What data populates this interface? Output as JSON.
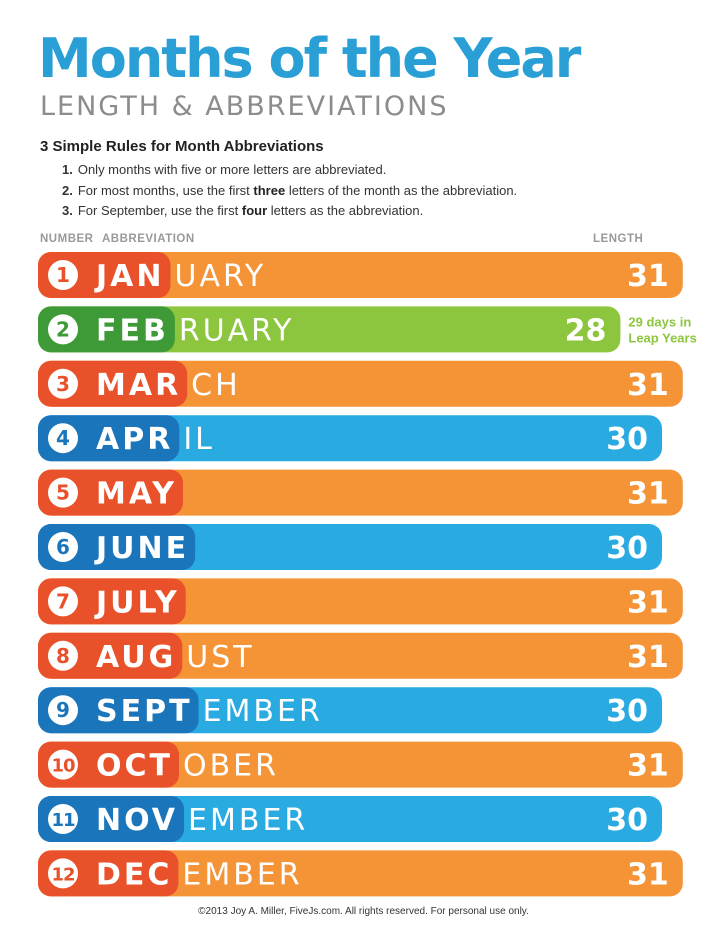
{
  "header": {
    "title": "Months of the Year",
    "subtitle": "LENGTH & ABBREVIATIONS"
  },
  "rules": {
    "heading": "3 Simple Rules for Month Abbreviations",
    "items": [
      {
        "num": "1.",
        "text_before": "Only months with five or more letters are abbreviated.",
        "bold": "",
        "text_after": ""
      },
      {
        "num": "2.",
        "text_before": "For most months, use the first ",
        "bold": "three",
        "text_after": " letters of the month as the abbreviation."
      },
      {
        "num": "3.",
        "text_before": "For September, use the first ",
        "bold": "four",
        "text_after": " letters as the abbreviation."
      }
    ]
  },
  "columns": {
    "number": "NUMBER",
    "abbreviation": "ABBREVIATION",
    "length": "LENGTH"
  },
  "colors": {
    "days31_light": "#f49437",
    "days31_dark": "#e8512a",
    "days30_light": "#29aae1",
    "days30_dark": "#1a75bb",
    "days28_light": "#8cc63f",
    "days28_dark": "#3e9a36"
  },
  "chart_data": {
    "type": "bar",
    "categories": [
      "1",
      "2",
      "3",
      "4",
      "5",
      "6",
      "7",
      "8",
      "9",
      "10",
      "11",
      "12"
    ],
    "months": [
      {
        "num": "1",
        "abbr": "JAN",
        "rest": "UARY",
        "days": 31
      },
      {
        "num": "2",
        "abbr": "FEB",
        "rest": "RUARY",
        "days": 28
      },
      {
        "num": "3",
        "abbr": "MAR",
        "rest": "CH",
        "days": 31
      },
      {
        "num": "4",
        "abbr": "APR",
        "rest": "IL",
        "days": 30
      },
      {
        "num": "5",
        "abbr": "MAY",
        "rest": "",
        "days": 31
      },
      {
        "num": "6",
        "abbr": "JUNE",
        "rest": "",
        "days": 30
      },
      {
        "num": "7",
        "abbr": "JULY",
        "rest": "",
        "days": 31
      },
      {
        "num": "8",
        "abbr": "AUG",
        "rest": "UST",
        "days": 31
      },
      {
        "num": "9",
        "abbr": "SEPT",
        "rest": "EMBER",
        "days": 30
      },
      {
        "num": "10",
        "abbr": "OCT",
        "rest": "OBER",
        "days": 31
      },
      {
        "num": "11",
        "abbr": "NOV",
        "rest": "EMBER",
        "days": 30
      },
      {
        "num": "12",
        "abbr": "DEC",
        "rest": "EMBER",
        "days": 31
      }
    ],
    "values": [
      31,
      28,
      31,
      30,
      31,
      30,
      31,
      31,
      30,
      31,
      30,
      31
    ],
    "annotation": {
      "month": "2",
      "lines": [
        "29 days in",
        "Leap Years"
      ]
    },
    "xlim": [
      0,
      31
    ],
    "grid": false,
    "legend": "none"
  },
  "footer": "©2013 Joy A. Miller, FiveJs.com. All rights reserved. For personal use only."
}
